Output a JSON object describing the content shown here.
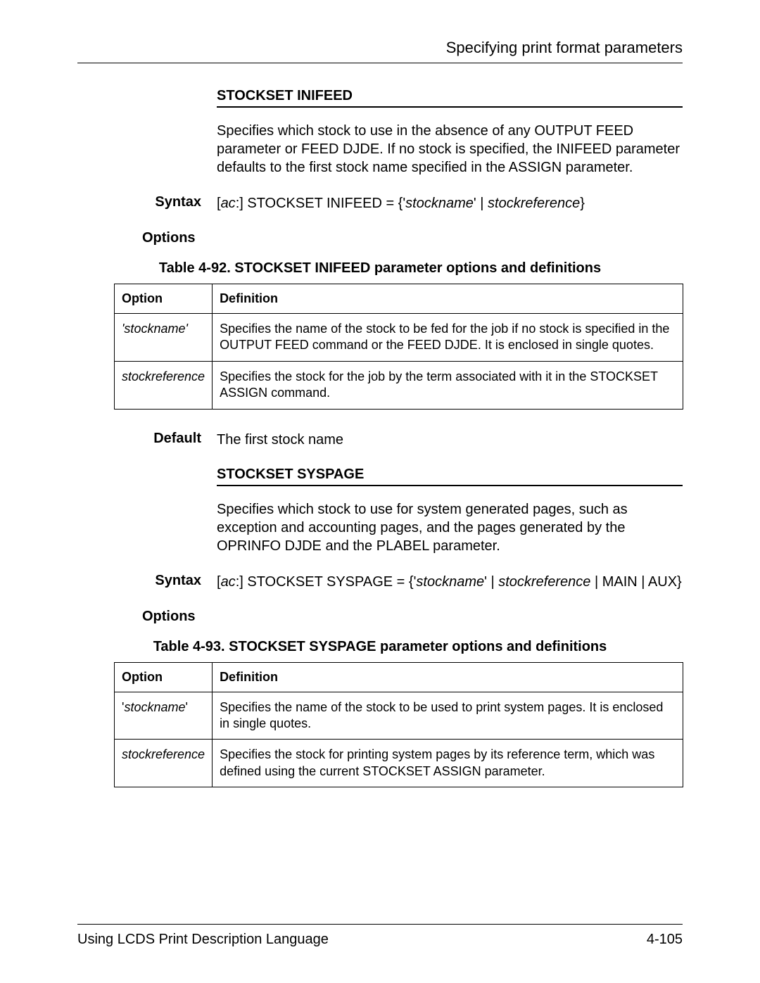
{
  "header": {
    "title": "Specifying print format parameters"
  },
  "section1": {
    "heading": "STOCKSET INIFEED",
    "description": "Specifies which stock to use in the absence of any OUTPUT FEED parameter or FEED DJDE. If no stock is specified, the INIFEED parameter defaults to the first stock name specified in the ASSIGN parameter.",
    "syntax_label": "Syntax",
    "syntax_prefix": "[",
    "syntax_ac": "ac",
    "syntax_text1": ":] STOCKSET INIFEED = {'",
    "syntax_stockname": "stockname",
    "syntax_text2": "' | ",
    "syntax_stockreference": "stockreference",
    "syntax_text3": "}",
    "options_label": "Options",
    "table_caption": "Table 4-92. STOCKSET INIFEED parameter options and definitions",
    "table": {
      "header_option": "Option",
      "header_definition": "Definition",
      "row1_option": "'stockname'",
      "row1_definition": "Specifies the name of the stock to be fed for the job if no stock is specified in the OUTPUT FEED command or the FEED DJDE. It is enclosed in single quotes.",
      "row2_option": "stockreference",
      "row2_definition": "Specifies the stock for the job by the term associated with it in the STOCKSET ASSIGN command."
    },
    "default_label": "Default",
    "default_text": "The first stock name"
  },
  "section2": {
    "heading": "STOCKSET SYSPAGE",
    "description": "Specifies which stock to use for system generated pages, such as exception and accounting pages, and the pages generated by the OPRINFO DJDE and the PLABEL parameter.",
    "syntax_label": "Syntax",
    "syntax_prefix": "[",
    "syntax_ac": "ac",
    "syntax_text1": ":] STOCKSET SYSPAGE = {'",
    "syntax_stockname": "stockname",
    "syntax_text2": "' | ",
    "syntax_stockreference": "stockreference",
    "syntax_text3": " | MAIN | AUX}",
    "options_label": "Options",
    "table_caption": "Table 4-93. STOCKSET SYSPAGE parameter options and definitions",
    "table": {
      "header_option": "Option",
      "header_definition": "Definition",
      "row1_option_quote1": "'",
      "row1_option_text": "stockname",
      "row1_option_quote2": "'",
      "row1_definition": "Specifies the name of the stock to be used to print system pages. It is enclosed in single quotes.",
      "row2_option": "stockreference",
      "row2_definition": "Specifies the stock for printing system pages by its reference term, which was defined using the current STOCKSET ASSIGN parameter."
    }
  },
  "footer": {
    "left": "Using LCDS Print Description Language",
    "right": "4-105"
  }
}
